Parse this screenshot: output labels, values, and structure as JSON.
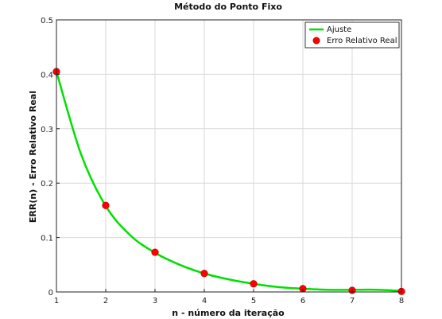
{
  "chart_data": {
    "type": "line",
    "title": "Método do Ponto Fixo",
    "xlabel": "n - número da iteração",
    "ylabel": "ERR(n) - Erro Relativo Real",
    "xlim": [
      1,
      8
    ],
    "ylim": [
      0,
      0.5
    ],
    "x_ticks": [
      1,
      2,
      3,
      4,
      5,
      6,
      7,
      8
    ],
    "y_ticks": [
      0,
      0.1,
      0.2,
      0.3,
      0.4,
      0.5
    ],
    "grid": true,
    "legend_position": "top-right",
    "series": [
      {
        "name": "Ajuste",
        "kind": "line",
        "color": "#00e000",
        "x": [
          1,
          1.5,
          2,
          2.5,
          3,
          3.5,
          4,
          4.5,
          5,
          5.5,
          6,
          6.5,
          7,
          7.5,
          8
        ],
        "y": [
          0.405,
          0.253,
          0.158,
          0.104,
          0.072,
          0.05,
          0.034,
          0.023,
          0.015,
          0.009,
          0.006,
          0.004,
          0.004,
          0.004,
          0.002
        ]
      },
      {
        "name": "Erro Relativo Real",
        "kind": "scatter",
        "color": "#ff0000",
        "x": [
          1,
          2,
          3,
          4,
          5,
          6,
          7,
          8
        ],
        "y": [
          0.405,
          0.159,
          0.073,
          0.034,
          0.015,
          0.006,
          0.003,
          0.001
        ]
      }
    ]
  }
}
